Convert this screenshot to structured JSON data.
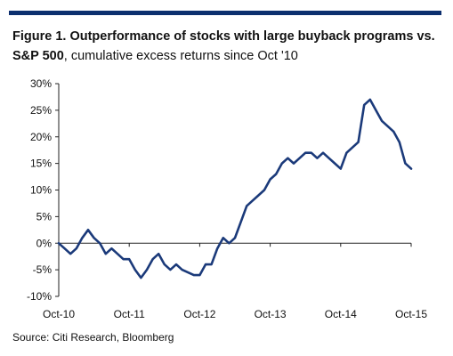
{
  "title": {
    "bold": "Figure 1. Outperformance of stocks with large buyback programs vs. S&P 500",
    "rest": ", cumulative excess returns since Oct '10"
  },
  "source": "Source: Citi Research, Bloomberg",
  "colors": {
    "line": "#1b3a7a",
    "topbar": "#0c2f6e"
  },
  "chart_data": {
    "type": "line",
    "title": "Figure 1. Outperformance of stocks with large buyback programs vs. S&P 500, cumulative excess returns since Oct '10",
    "xlabel": "",
    "ylabel": "",
    "x_tick_labels": [
      "Oct-10",
      "Oct-11",
      "Oct-12",
      "Oct-13",
      "Oct-14",
      "Oct-15"
    ],
    "y_tick_labels": [
      "30%",
      "25%",
      "20%",
      "15%",
      "10%",
      "5%",
      "0%",
      "-5%",
      "-10%"
    ],
    "ylim": [
      -10,
      30
    ],
    "xlim": [
      "Oct-10",
      "Oct-15"
    ],
    "grid": false,
    "series": [
      {
        "x": [
          "Oct-10",
          "Nov-10",
          "Dec-10",
          "Jan-11",
          "Feb-11",
          "Mar-11",
          "Apr-11",
          "May-11",
          "Jun-11",
          "Jul-11",
          "Aug-11",
          "Sep-11",
          "Oct-11",
          "Nov-11",
          "Dec-11",
          "Jan-12",
          "Feb-12",
          "Mar-12",
          "Apr-12",
          "May-12",
          "Jun-12",
          "Jul-12",
          "Aug-12",
          "Sep-12",
          "Oct-12",
          "Nov-12",
          "Dec-12",
          "Jan-13",
          "Feb-13",
          "Mar-13",
          "Apr-13",
          "May-13",
          "Jun-13",
          "Jul-13",
          "Aug-13",
          "Sep-13",
          "Oct-13",
          "Nov-13",
          "Dec-13",
          "Jan-14",
          "Feb-14",
          "Mar-14",
          "Apr-14",
          "May-14",
          "Jun-14",
          "Jul-14",
          "Aug-14",
          "Sep-14",
          "Oct-14",
          "Nov-14",
          "Dec-14",
          "Jan-15",
          "Feb-15",
          "Mar-15",
          "Apr-15",
          "May-15",
          "Jun-15",
          "Jul-15",
          "Aug-15",
          "Sep-15",
          "Oct-15"
        ],
        "values": [
          0,
          -1,
          -2,
          -1,
          1,
          2.5,
          1,
          0,
          -2,
          -1,
          -2,
          -3,
          -3,
          -5,
          -6.5,
          -5,
          -3,
          -2,
          -4,
          -5,
          -4,
          -5,
          -5.5,
          -6,
          -6,
          -4,
          -4,
          -1,
          1,
          0,
          1,
          4,
          7,
          8,
          9,
          10,
          12,
          13,
          15,
          16,
          15,
          16,
          17,
          17,
          16,
          17,
          16,
          15,
          14,
          17,
          18,
          19,
          26,
          27,
          25,
          23,
          22,
          21,
          19,
          15,
          14
        ]
      }
    ]
  }
}
